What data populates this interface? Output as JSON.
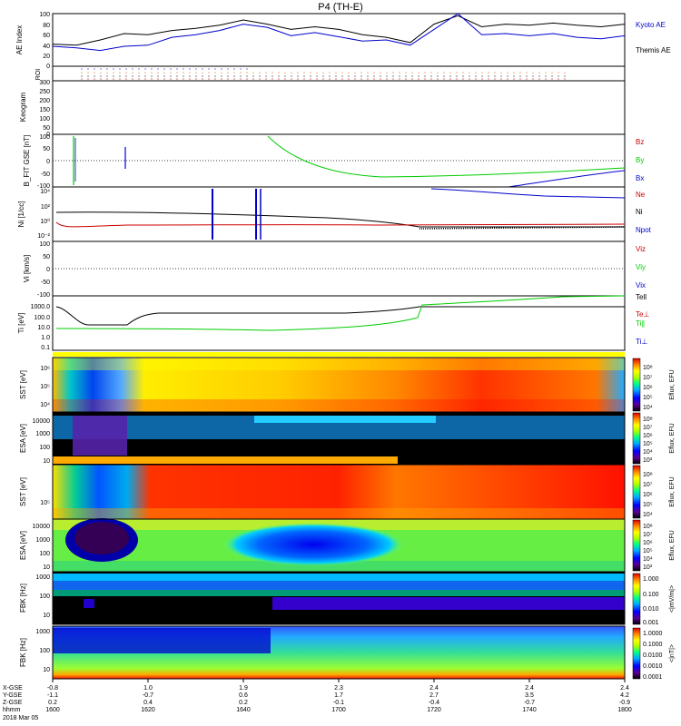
{
  "title": "P4 (TH-E)",
  "chart_data": [
    {
      "type": "line",
      "panel": "ae",
      "ylabel": "AE Index",
      "ylim": [
        0,
        100
      ],
      "yticks": [
        "100",
        "80",
        "60",
        "40",
        "20",
        "0"
      ],
      "legend": [
        "Kyoto AE",
        "Themis AE"
      ],
      "colors": [
        "#000000",
        "#0000cc"
      ],
      "x": [
        0,
        5,
        10,
        15,
        20,
        25,
        30,
        35,
        40,
        45,
        50,
        55,
        60,
        65,
        70,
        75,
        80,
        85,
        90,
        95,
        100,
        105,
        110,
        115,
        120
      ],
      "series": [
        {
          "name": "Kyoto AE",
          "values": [
            42,
            40,
            50,
            62,
            60,
            68,
            72,
            78,
            88,
            80,
            70,
            75,
            70,
            60,
            55,
            45,
            80,
            96,
            75,
            80,
            78,
            82,
            78,
            75,
            80
          ]
        },
        {
          "name": "Themis AE",
          "values": [
            38,
            35,
            30,
            38,
            40,
            55,
            60,
            68,
            80,
            74,
            58,
            64,
            56,
            48,
            50,
            40,
            70,
            100,
            60,
            62,
            58,
            62,
            55,
            52,
            58
          ]
        }
      ]
    },
    {
      "type": "scatter",
      "panel": "roi",
      "ylabel": "ROI"
    },
    {
      "type": "heatmap",
      "panel": "keogram",
      "ylabel": "Keogram",
      "yticks": [
        "300",
        "250",
        "200",
        "150",
        "100",
        "50",
        "0"
      ]
    },
    {
      "type": "line",
      "panel": "bfit",
      "ylabel": "B_FIT GSE [nT]",
      "ylim": [
        -100,
        100
      ],
      "yticks": [
        "100",
        "50",
        "0",
        "-50",
        "-100"
      ],
      "legend": [
        "Bz",
        "By",
        "Bx"
      ],
      "colors": [
        "#cc0000",
        "#00cc00",
        "#0000cc"
      ]
    },
    {
      "type": "line",
      "panel": "density",
      "ylabel": "Ni [1/cc]",
      "ylim_label": "log",
      "yticks": [
        "10⁴",
        "10²",
        "10⁰",
        "10⁻²"
      ],
      "legend": [
        "Ne",
        "Ni",
        "Npot"
      ],
      "colors": [
        "#cc0000",
        "#000000",
        "#0000cc"
      ]
    },
    {
      "type": "line",
      "panel": "velocity",
      "ylabel": "Vi [km/s]",
      "ylim": [
        -100,
        100
      ],
      "yticks": [
        "100",
        "50",
        "0",
        "-50",
        "-100"
      ],
      "legend": [
        "Viz",
        "Viy",
        "Vix"
      ],
      "colors": [
        "#cc0000",
        "#00cc00",
        "#0000cc"
      ]
    },
    {
      "type": "line",
      "panel": "temperature",
      "ylabel": "Ti [eV]",
      "ylim_label": "log",
      "yticks": [
        "1000.0",
        "100.0",
        "10.0",
        "1.0",
        "0.1"
      ],
      "legend": [
        "Tell",
        "Te⊥",
        "Ti∥",
        "Ti⊥"
      ],
      "colors": [
        "#000000",
        "#cc0000",
        "#00cc00",
        "#0000cc"
      ]
    },
    {
      "type": "heatmap",
      "panel": "sst_e",
      "ylabel": "SST [eV]",
      "yticks": [
        "10⁶",
        "10⁵",
        "10⁴"
      ]
    },
    {
      "type": "heatmap",
      "panel": "esa_e",
      "ylabel": "ESA [eV]",
      "yticks": [
        "10000",
        "1000",
        "100",
        "10"
      ]
    },
    {
      "type": "heatmap",
      "panel": "sst_i",
      "ylabel": "SST [eV]",
      "yticks": [
        "10⁵"
      ]
    },
    {
      "type": "heatmap",
      "panel": "esa_i",
      "ylabel": "ESA [eV]",
      "yticks": [
        "10000",
        "1000",
        "100",
        "10"
      ]
    },
    {
      "type": "heatmap",
      "panel": "fbk_e",
      "ylabel": "FBK [Hz]",
      "yticks": [
        "1000",
        "100",
        "10"
      ]
    },
    {
      "type": "heatmap",
      "panel": "fbk_b",
      "ylabel": "FBK [Hz]",
      "yticks": [
        "1000",
        "100",
        "10"
      ]
    }
  ],
  "colorbars": [
    {
      "label": "Eflux, EFU",
      "ticks": [
        "10⁸",
        "10⁷",
        "10⁶",
        "10⁵",
        "10⁴"
      ]
    },
    {
      "label": "Eflux, EFU",
      "ticks": [
        "10⁸",
        "10⁷",
        "10⁶",
        "10⁵",
        "10⁴",
        "10³"
      ]
    },
    {
      "label": "Eflux, EFU",
      "ticks": [
        "10⁸",
        "10⁷",
        "10⁶",
        "10⁵",
        "10⁴"
      ]
    },
    {
      "label": "Eflux, EFU",
      "ticks": [
        "10⁸",
        "10⁷",
        "10⁶",
        "10⁵",
        "10⁴",
        "10³"
      ]
    },
    {
      "label": "<|mV/m|>",
      "ticks": [
        "1.000",
        "0.100",
        "0.010",
        "0.001"
      ]
    },
    {
      "label": "<|nT|>",
      "ticks": [
        "1.0000",
        "0.1000",
        "0.0100",
        "0.0010",
        "0.0001"
      ]
    }
  ],
  "xaxis": {
    "row_labels": [
      "X-GSE",
      "Y-GSE",
      "Z-GSE",
      "hhmm",
      "2018 Mar 05"
    ],
    "columns": [
      [
        "-0.8",
        "-1.1",
        "0.2",
        "1600"
      ],
      [
        "1.0",
        "-0.7",
        "0.4",
        "1620"
      ],
      [
        "1.9",
        "0.6",
        "0.2",
        "1640"
      ],
      [
        "2.3",
        "1.7",
        "-0.1",
        "1700"
      ],
      [
        "2.4",
        "2.7",
        "-0.4",
        "1720"
      ],
      [
        "2.4",
        "3.5",
        "-0.7",
        "1740"
      ],
      [
        "2.4",
        "4.2",
        "-0.9",
        "1800"
      ]
    ]
  }
}
